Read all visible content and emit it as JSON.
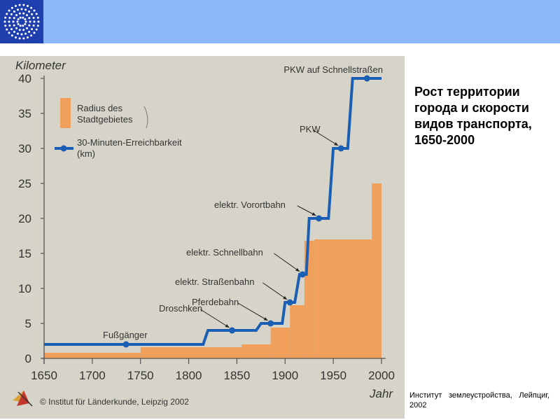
{
  "header": {
    "logo_icon": "star-circle-logo-icon",
    "bar_color": "#8cb7f8",
    "logo_bg": "#1f3fae"
  },
  "side_title": "Рост территории\nгорода и скорости\nвидов транспорта,\n1650-2000",
  "source_note": "Институт землеустройства, Лейпциг, 2002",
  "chart_data": {
    "type": "bar",
    "ylabel": "Kilometer",
    "xlabel": "Jahr",
    "ylim": [
      0,
      40
    ],
    "xlim": [
      1650,
      2000
    ],
    "yticks": [
      0,
      5,
      10,
      15,
      20,
      25,
      30,
      35,
      40
    ],
    "xticks": [
      1650,
      1700,
      1750,
      1800,
      1850,
      1900,
      1950,
      2000
    ],
    "legend": [
      {
        "label": "Radius des Stadtgebietes",
        "symbol": "area",
        "color": "#f0a05a"
      },
      {
        "label": "30-Minuten-Erreichbarkeit (km)",
        "symbol": "line-dot",
        "color": "#1b5fb5"
      }
    ],
    "legend_placement": "top-left",
    "area_series": {
      "name": "Radius des Stadtgebietes",
      "steps": [
        {
          "x_start": 1650,
          "x_end": 1750,
          "value": 0.8
        },
        {
          "x_start": 1750,
          "x_end": 1855,
          "value": 1.6
        },
        {
          "x_start": 1855,
          "x_end": 1885,
          "value": 2.0
        },
        {
          "x_start": 1885,
          "x_end": 1905,
          "value": 4.4
        },
        {
          "x_start": 1905,
          "x_end": 1920,
          "value": 7.6
        },
        {
          "x_start": 1920,
          "x_end": 1930,
          "value": 16.8
        },
        {
          "x_start": 1930,
          "x_end": 1990,
          "value": 17.0
        },
        {
          "x_start": 1990,
          "x_end": 2000,
          "value": 25.0
        }
      ]
    },
    "line_series": {
      "name": "30-Minuten-Erreichbarkeit (km)",
      "points": [
        {
          "x": 1650,
          "y": 2
        },
        {
          "x": 1815,
          "y": 2
        },
        {
          "x": 1820,
          "y": 4
        },
        {
          "x": 1870,
          "y": 4
        },
        {
          "x": 1875,
          "y": 5
        },
        {
          "x": 1892,
          "y": 5
        },
        {
          "x": 1897,
          "y": 5
        },
        {
          "x": 1900,
          "y": 8
        },
        {
          "x": 1910,
          "y": 8
        },
        {
          "x": 1915,
          "y": 12
        },
        {
          "x": 1922,
          "y": 12
        },
        {
          "x": 1925,
          "y": 20
        },
        {
          "x": 1945,
          "y": 20
        },
        {
          "x": 1950,
          "y": 30
        },
        {
          "x": 1965,
          "y": 30
        },
        {
          "x": 1970,
          "y": 40
        },
        {
          "x": 2000,
          "y": 40
        }
      ],
      "markers": [
        {
          "x": 1735,
          "y": 2
        },
        {
          "x": 1845,
          "y": 4
        },
        {
          "x": 1885,
          "y": 5
        },
        {
          "x": 1905,
          "y": 8
        },
        {
          "x": 1918,
          "y": 12
        },
        {
          "x": 1935,
          "y": 20
        },
        {
          "x": 1958,
          "y": 30
        },
        {
          "x": 1985,
          "y": 40
        }
      ]
    },
    "annotations": [
      {
        "label": "Fußgänger",
        "x": 1735,
        "y": 2
      },
      {
        "label": "Droschken",
        "x": 1845,
        "y": 4
      },
      {
        "label": "Pferdebahn",
        "x": 1885,
        "y": 5
      },
      {
        "label": "elektr. Straßenbahn",
        "x": 1905,
        "y": 8
      },
      {
        "label": "elektr. Schnellbahn",
        "x": 1918,
        "y": 12
      },
      {
        "label": "elektr. Vorortbahn",
        "x": 1935,
        "y": 20
      },
      {
        "label": "PKW",
        "x": 1958,
        "y": 30
      },
      {
        "label": "PKW auf Schnellstraßen",
        "x": 1985,
        "y": 40
      }
    ],
    "copyright": "© Institut für Länderkunde, Leipzig 2002",
    "colors": {
      "panel": "#d6d4c8",
      "area": "#f0a05a",
      "line": "#1b5fb5",
      "axis": "#555555",
      "text": "#333333"
    }
  }
}
